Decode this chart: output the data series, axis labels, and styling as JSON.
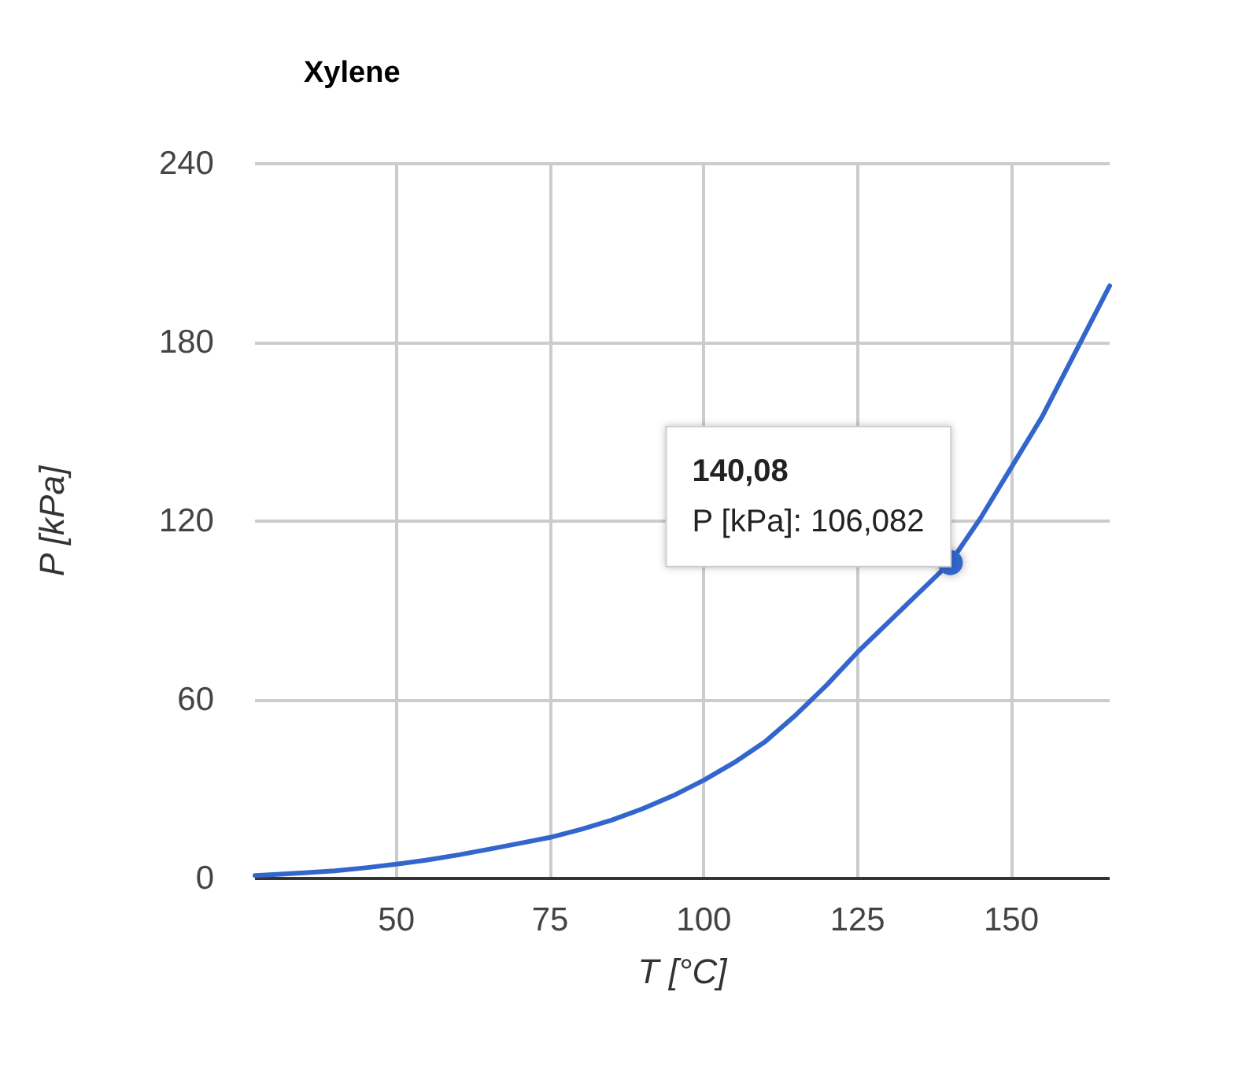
{
  "chart_data": {
    "type": "line",
    "title": "Xylene",
    "xlabel": "T [°C]",
    "ylabel": "P [kPa]",
    "x": [
      27,
      30,
      35,
      40,
      45,
      50,
      55,
      60,
      65,
      70,
      75,
      80,
      85,
      90,
      95,
      100,
      105,
      110,
      115,
      120,
      125,
      130,
      135,
      140.08,
      145,
      150,
      155,
      160,
      166
    ],
    "series": [
      {
        "color": "#3366cc",
        "values": [
          1,
          1.3,
          1.9,
          2.6,
          3.6,
          4.8,
          6.2,
          7.9,
          9.8,
          11.8,
          13.8,
          16.5,
          19.6,
          23.4,
          27.8,
          33,
          39,
          46,
          55,
          65,
          76,
          86,
          96,
          106.082,
          121,
          138,
          155,
          175,
          199
        ]
      }
    ],
    "xlim": [
      27,
      166
    ],
    "xticks": [
      50,
      75,
      100,
      125,
      150
    ],
    "ylim": [
      0,
      240
    ],
    "yticks": [
      0,
      60,
      120,
      180,
      240
    ],
    "grid": true,
    "marker": "none",
    "line_style": "solid",
    "annotations": [
      {
        "text": "140,08\nP [kPa]: 106,082",
        "x": 140.08,
        "y": 106.082
      }
    ]
  }
}
